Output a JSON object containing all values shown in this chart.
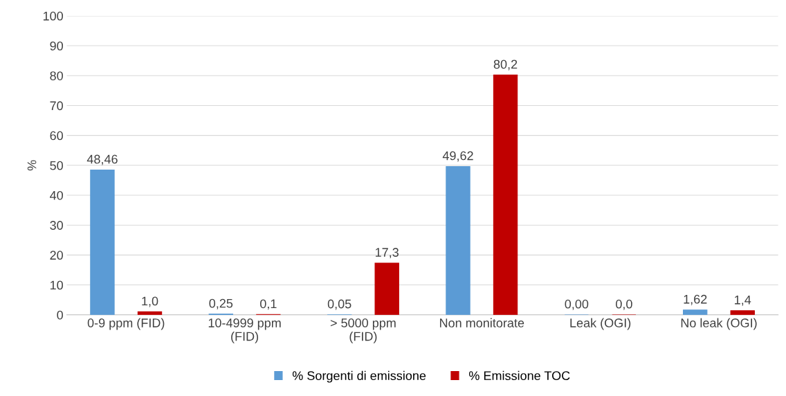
{
  "chart_data": {
    "type": "bar",
    "ylabel": "%",
    "categories": [
      "0-9 ppm (FID)",
      "10-4999 ppm\n(FID)",
      "> 5000 ppm\n(FID)",
      "Non monitorate",
      "Leak (OGI)",
      "No leak (OGI)"
    ],
    "series": [
      {
        "name": "% Sorgenti di emissione",
        "color": "#5b9bd5",
        "values": [
          48.46,
          0.25,
          0.05,
          49.62,
          0.0,
          1.62
        ],
        "value_labels": [
          "48,46",
          "0,25",
          "0,05",
          "49,62",
          "0,00",
          "1,62"
        ]
      },
      {
        "name": "% Emissione TOC",
        "color": "#c00000",
        "values": [
          1.0,
          0.1,
          17.3,
          80.2,
          0.0,
          1.4
        ],
        "value_labels": [
          "1,0",
          "0,1",
          "17,3",
          "80,2",
          "0,0",
          "1,4"
        ]
      }
    ],
    "ylim": [
      0,
      100
    ],
    "yticks": [
      0,
      10,
      20,
      30,
      40,
      50,
      60,
      70,
      80,
      90,
      100
    ],
    "grid": "y",
    "legend": "bottom"
  }
}
